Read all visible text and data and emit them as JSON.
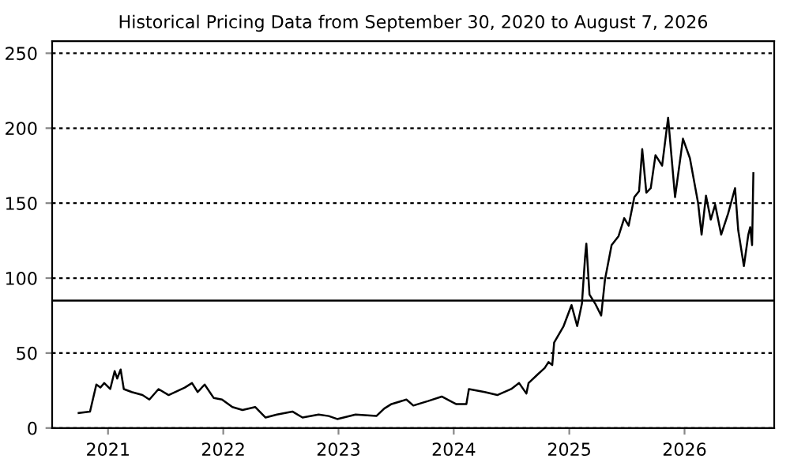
{
  "chart_data": {
    "type": "line",
    "title": "Historical Pricing Data from September 30, 2020 to August 7, 2026",
    "x": [
      "2020-09-30",
      "2020-11-05",
      "2020-11-25",
      "2020-12-08",
      "2020-12-20",
      "2021-01-08",
      "2021-01-22",
      "2021-01-30",
      "2021-02-10",
      "2021-02-20",
      "2021-03-17",
      "2021-04-20",
      "2021-05-12",
      "2021-06-10",
      "2021-07-12",
      "2021-09-01",
      "2021-09-24",
      "2021-10-12",
      "2021-11-03",
      "2021-12-02",
      "2021-12-28",
      "2022-01-30",
      "2022-03-03",
      "2022-04-12",
      "2022-05-15",
      "2022-06-20",
      "2022-08-08",
      "2022-09-09",
      "2022-10-30",
      "2022-12-01",
      "2022-12-28",
      "2023-02-24",
      "2023-05-01",
      "2023-05-26",
      "2023-06-18",
      "2023-08-04",
      "2023-08-26",
      "2023-10-12",
      "2023-11-24",
      "2024-01-08",
      "2024-02-10",
      "2024-02-18",
      "2024-04-08",
      "2024-05-18",
      "2024-07-01",
      "2024-07-26",
      "2024-08-18",
      "2024-08-25",
      "2024-09-24",
      "2024-10-15",
      "2024-10-27",
      "2024-11-08",
      "2024-11-14",
      "2024-12-14",
      "2025-01-08",
      "2025-01-26",
      "2025-02-10",
      "2025-02-20",
      "2025-02-24",
      "2025-03-06",
      "2025-03-24",
      "2025-04-12",
      "2025-04-24",
      "2025-05-15",
      "2025-06-06",
      "2025-06-24",
      "2025-07-08",
      "2025-07-26",
      "2025-08-10",
      "2025-08-20",
      "2025-09-02",
      "2025-09-16",
      "2025-10-01",
      "2025-10-22",
      "2025-11-10",
      "2025-12-02",
      "2025-12-27",
      "2026-01-18",
      "2026-02-13",
      "2026-02-24",
      "2026-03-10",
      "2026-03-25",
      "2026-04-08",
      "2026-04-27",
      "2026-05-19",
      "2026-06-10",
      "2026-06-20",
      "2026-07-08",
      "2026-07-22",
      "2026-07-28",
      "2026-08-03",
      "2026-08-07"
    ],
    "series": [
      {
        "color": "#000000",
        "values": [
          10,
          11,
          29,
          27,
          30,
          26,
          38,
          33,
          39,
          26,
          24,
          22,
          19,
          26,
          22,
          27,
          30,
          24,
          29,
          20,
          19,
          14,
          12,
          14,
          7,
          9,
          11,
          7,
          9,
          8,
          6,
          9,
          8,
          13,
          16,
          19,
          15,
          18,
          21,
          16,
          16,
          26,
          24,
          22,
          26,
          30,
          23,
          30,
          36,
          40,
          44,
          42,
          57,
          68,
          82,
          68,
          83,
          114,
          123,
          89,
          83,
          75,
          99,
          122,
          128,
          140,
          135,
          154,
          158,
          186,
          157,
          160,
          182,
          175,
          207,
          154,
          193,
          180,
          150,
          129,
          155,
          139,
          149,
          129,
          143,
          160,
          132,
          108,
          129,
          134,
          122,
          170
        ]
      }
    ],
    "xlim": [
      "2020-07-08",
      "2026-10-12"
    ],
    "xticks": [
      {
        "value": "2021-01-01",
        "label": "2021"
      },
      {
        "value": "2022-01-01",
        "label": "2022"
      },
      {
        "value": "2023-01-01",
        "label": "2023"
      },
      {
        "value": "2024-01-01",
        "label": "2024"
      },
      {
        "value": "2025-01-01",
        "label": "2025"
      },
      {
        "value": "2026-01-01",
        "label": "2026"
      }
    ],
    "ylim": [
      0,
      258
    ],
    "yticks": [
      0,
      50,
      100,
      150,
      200,
      250
    ],
    "grid": "y",
    "line_style": "solid",
    "marker": "none",
    "legend": false,
    "ref_lines": [
      {
        "axis": "y",
        "value": 85,
        "color": "#000000",
        "line_style": "solid"
      }
    ]
  }
}
